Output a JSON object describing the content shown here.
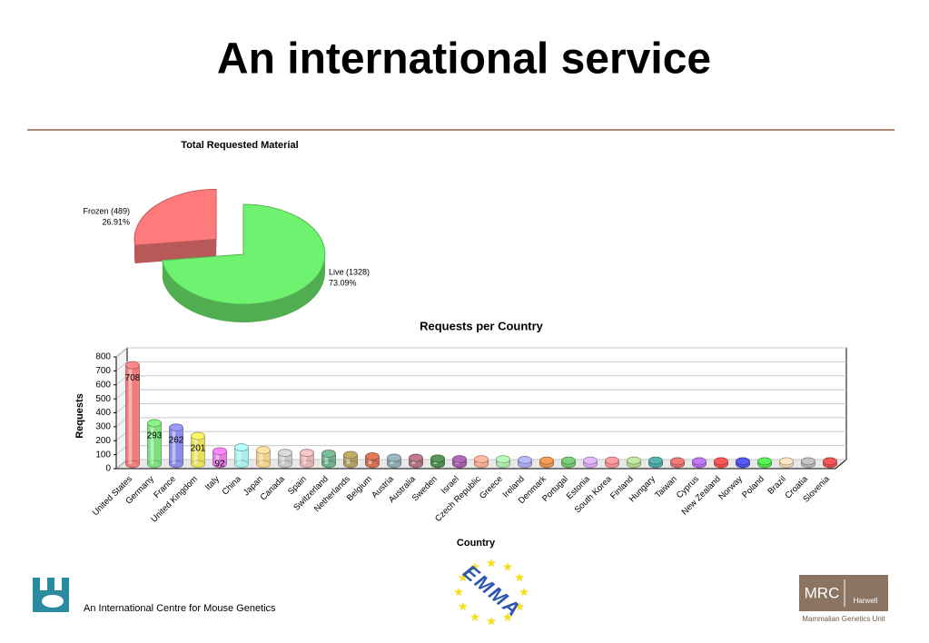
{
  "title": "An international service",
  "chart_data": [
    {
      "type": "pie",
      "title": "Total Requested Material",
      "categories": [
        "Frozen",
        "Live"
      ],
      "values": [
        489,
        1328
      ],
      "labels": [
        "Frozen (489)",
        "Live (1328)"
      ],
      "percent_labels": [
        "26.91%",
        "73.09%"
      ],
      "colors": [
        "#ff7a7a",
        "#6ff26f"
      ],
      "explode": [
        true,
        false
      ]
    },
    {
      "type": "bar",
      "title": "Requests per Country",
      "xlabel": "Country",
      "ylabel": "Requests",
      "categories": [
        "United States",
        "Germany",
        "France",
        "United Kingdom",
        "Italy",
        "China",
        "Japan",
        "Canada",
        "Spain",
        "Switzerland",
        "Netherlands",
        "Belgium",
        "Austria",
        "Australia",
        "Sweden",
        "Israel",
        "Czech Republic",
        "Greece",
        "Ireland",
        "Denmark",
        "Portugal",
        "Estonia",
        "South Korea",
        "Finland",
        "Hungary",
        "Taiwan",
        "Cyprus",
        "New Zealand",
        "Norway",
        "Poland",
        "Brazil",
        "Croatia",
        "Slovenia"
      ],
      "values": [
        708,
        293,
        262,
        201,
        92,
        120,
        100,
        80,
        80,
        75,
        65,
        55,
        45,
        45,
        40,
        35,
        35,
        35,
        30,
        25,
        25,
        25,
        25,
        25,
        25,
        20,
        20,
        20,
        20,
        20,
        20,
        20,
        20
      ],
      "value_labels": [
        "708",
        "293",
        "262",
        "201",
        "92",
        null,
        null,
        null,
        null,
        null,
        null,
        null,
        null,
        null,
        null,
        null,
        null,
        null,
        null,
        null,
        null,
        null,
        null,
        null,
        null,
        null,
        null,
        null,
        null,
        null,
        null,
        null,
        null
      ],
      "colors": [
        "#f07c7c",
        "#7ce07c",
        "#8c8ce6",
        "#e6e060",
        "#e67ce6",
        "#a8eeee",
        "#f0d090",
        "#c8c8c8",
        "#e4b4b4",
        "#6fae8c",
        "#b0a060",
        "#d07050",
        "#90a8b0",
        "#b07080",
        "#508a50",
        "#a060a8",
        "#f0a890",
        "#a8e4a8",
        "#a8a8e8",
        "#e09050",
        "#70c070",
        "#d4a8e8",
        "#f09090",
        "#b4d494",
        "#50a4a4",
        "#e07070",
        "#b070e4",
        "#f05050",
        "#5050e0",
        "#50e050",
        "#f0d4b4",
        "#b4b4b4",
        "#e05050"
      ],
      "ylim": [
        0,
        800
      ],
      "yticks": [
        0,
        100,
        200,
        300,
        400,
        500,
        600,
        700,
        800
      ],
      "grid": true
    }
  ],
  "footer": {
    "left_text": "An International Centre for Mouse Genetics",
    "center_logo": "EMMA",
    "right_logo": "MRC",
    "right_logo_sub": "Harwell",
    "right_caption": "Mammalian Genetics Unit"
  }
}
